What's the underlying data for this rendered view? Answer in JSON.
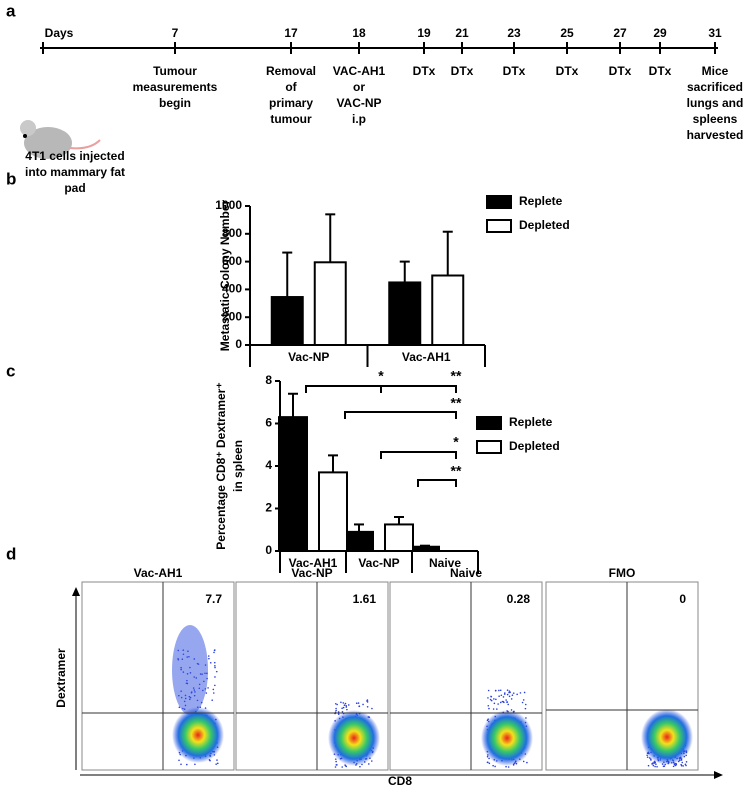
{
  "timeline": {
    "letter": "a",
    "points": [
      {
        "day": "Days",
        "event": [
          "4T1 cells injected",
          "into mammary fat",
          "pad"
        ]
      },
      {
        "day": "7",
        "event": [
          "Tumour",
          "measurements",
          "begin"
        ]
      },
      {
        "day": "17",
        "event": [
          "Removal",
          "of",
          "primary",
          "tumour"
        ]
      },
      {
        "day": "18",
        "event": [
          "VAC-AH1",
          "or",
          "VAC-NP",
          "i.p"
        ]
      },
      {
        "day": "19",
        "event": [
          "DTx"
        ]
      },
      {
        "day": "21",
        "event": [
          "DTx"
        ]
      },
      {
        "day": "23",
        "event": [
          "DTx"
        ]
      },
      {
        "day": "25",
        "event": [
          "DTx"
        ]
      },
      {
        "day": "27",
        "event": [
          "DTx"
        ]
      },
      {
        "day": "29",
        "event": [
          "DTx"
        ]
      },
      {
        "day": "31",
        "event": [
          "Mice",
          "sacrificed",
          "lungs and",
          "spleens",
          "harvested"
        ]
      }
    ]
  },
  "chart_data": [
    {
      "type": "bar",
      "letter": "b",
      "y_label": [
        "Metastatic Colony Number"
      ],
      "categories": [
        "Vac-NP",
        "Vac-AH1"
      ],
      "series": [
        {
          "name": "Replete",
          "color": "#000000",
          "values": [
            345,
            450
          ],
          "errors": [
            320,
            150
          ]
        },
        {
          "name": "Depleted",
          "color": "#ffffff",
          "values": [
            595,
            500
          ],
          "errors": [
            345,
            315
          ]
        }
      ],
      "ylim": [
        0,
        1000
      ],
      "yticks": [
        0,
        200,
        400,
        600,
        800,
        1000
      ]
    },
    {
      "type": "bar",
      "letter": "c",
      "y_label": [
        "Percentage CD8⁺ Dextramer⁺",
        "in spleen"
      ],
      "categories": [
        "Vac-AH1",
        "Vac-NP",
        "Naive"
      ],
      "series": [
        {
          "name": "Replete",
          "color": "#000000",
          "values": [
            6.3,
            0.9,
            0.2
          ],
          "errors": [
            1.1,
            0.35,
            0.05
          ]
        },
        {
          "name": "Depleted",
          "color": "#ffffff",
          "values": [
            3.7,
            1.25,
            null
          ],
          "errors": [
            0.8,
            0.35,
            null
          ]
        }
      ],
      "ylim": [
        0,
        8
      ],
      "yticks": [
        0,
        2,
        4,
        6,
        8
      ],
      "annotations": [
        "*",
        "**",
        "**",
        "*",
        "**"
      ]
    }
  ],
  "flow": {
    "letter": "d",
    "y_label": "Dextramer",
    "x_label": "CD8",
    "panels": [
      {
        "title": "Vac-AH1",
        "value": "7.7"
      },
      {
        "title": "Vac-NP",
        "value": "1.61"
      },
      {
        "title": "Naive",
        "value": "0.28"
      },
      {
        "title": "FMO",
        "value": "0"
      }
    ]
  }
}
